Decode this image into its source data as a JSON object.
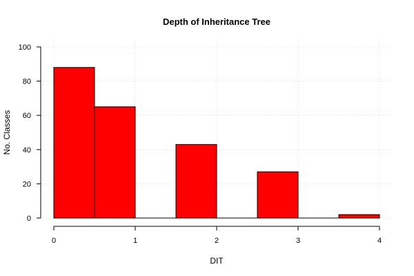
{
  "chart_data": {
    "type": "bar",
    "title": "Depth of Inheritance Tree",
    "xlabel": "DIT",
    "ylabel": "No. Classes",
    "bins": [
      {
        "start": 0.0,
        "end": 0.5,
        "value": 88
      },
      {
        "start": 0.5,
        "end": 1.0,
        "value": 65
      },
      {
        "start": 1.0,
        "end": 1.5,
        "value": 0
      },
      {
        "start": 1.5,
        "end": 2.0,
        "value": 43
      },
      {
        "start": 2.0,
        "end": 2.5,
        "value": 0
      },
      {
        "start": 2.5,
        "end": 3.0,
        "value": 27
      },
      {
        "start": 3.0,
        "end": 3.5,
        "value": 0
      },
      {
        "start": 3.5,
        "end": 4.0,
        "value": 2
      }
    ],
    "xlim": [
      0,
      4
    ],
    "ylim": [
      0,
      100
    ],
    "x_ticks": [
      "0",
      "1",
      "2",
      "3",
      "4"
    ],
    "y_ticks": [
      "0",
      "20",
      "40",
      "60",
      "80",
      "100"
    ],
    "grid": true,
    "bar_color": "#ff0000",
    "bar_border_color": "#000000",
    "grid_color": "#d3d3d3"
  }
}
